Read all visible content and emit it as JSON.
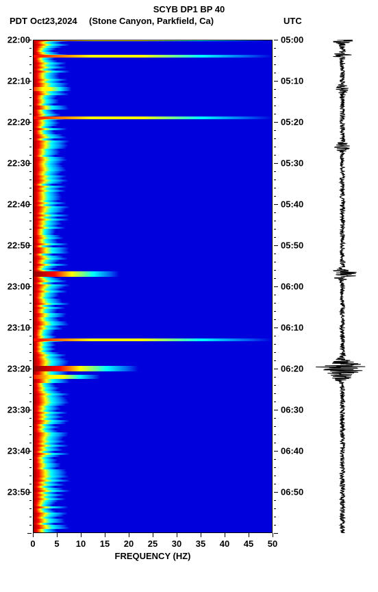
{
  "header": {
    "title": "SCYB DP1 BP 40",
    "tz_left": "PDT",
    "date": "Oct23,2024",
    "location": "(Stone Canyon, Parkfield, Ca)",
    "tz_right": "UTC"
  },
  "axes": {
    "x": {
      "label": "FREQUENCY (HZ)",
      "lim": [
        0,
        50
      ],
      "ticks": [
        0,
        5,
        10,
        15,
        20,
        25,
        30,
        35,
        40,
        45,
        50
      ],
      "label_fontsize": 13
    },
    "y_left": {
      "ticks": [
        "22:00",
        "22:10",
        "22:20",
        "22:30",
        "22:40",
        "22:50",
        "23:00",
        "23:10",
        "23:20",
        "23:30",
        "23:40",
        "23:50"
      ]
    },
    "y_right": {
      "ticks": [
        "05:00",
        "05:10",
        "05:20",
        "05:30",
        "05:40",
        "05:50",
        "06:00",
        "06:10",
        "06:20",
        "06:30",
        "06:40",
        "06:50"
      ]
    },
    "y_range_minutes": 120,
    "y_tick_step_minutes": 10
  },
  "colors": {
    "background": "#ffffff",
    "spectrogram_bg": "#0000dd",
    "grid_v": "#0033ff",
    "low_energy": "#0000dd",
    "mid_energy": "#00ffff",
    "high_energy": "#ffff00",
    "very_high_energy": "#ff0000",
    "max_energy": "#8b0000",
    "waveform": "#000000",
    "text": "#000000"
  },
  "spectrogram": {
    "type": "spectrogram",
    "low_freq_band": {
      "comment": "0-4 Hz persistent high energy band",
      "freq_range": [
        0,
        4
      ],
      "color_stops": [
        "#8b0000",
        "#ff0000",
        "#ffff00",
        "#00ffff",
        "#0066ff"
      ]
    },
    "events": [
      {
        "time_min": 0,
        "freq_extent": 50,
        "intensity": 0.45,
        "comment": "top band"
      },
      {
        "time_min": 4,
        "freq_extent": 50,
        "intensity": 0.35
      },
      {
        "time_min": 12,
        "freq_extent": 8,
        "intensity": 0.55
      },
      {
        "time_min": 19,
        "freq_extent": 50,
        "intensity": 0.3
      },
      {
        "time_min": 57,
        "freq_extent": 18,
        "intensity": 0.9,
        "comment": "near 23:00 strong"
      },
      {
        "time_min": 73,
        "freq_extent": 50,
        "intensity": 0.35
      },
      {
        "time_min": 80,
        "freq_extent": 22,
        "intensity": 1.0,
        "comment": "strongest near 23:20"
      },
      {
        "time_min": 82,
        "freq_extent": 14,
        "intensity": 0.6
      }
    ]
  },
  "waveform": {
    "type": "seismogram",
    "baseline_amplitude": 0.1,
    "spikes": [
      {
        "time_min": 0,
        "amp": 0.35
      },
      {
        "time_min": 4,
        "amp": 0.3
      },
      {
        "time_min": 12,
        "amp": 0.2
      },
      {
        "time_min": 26,
        "amp": 0.22
      },
      {
        "time_min": 57,
        "amp": 0.55
      },
      {
        "time_min": 80,
        "amp": 1.0
      },
      {
        "time_min": 82,
        "amp": 0.4
      }
    ]
  }
}
